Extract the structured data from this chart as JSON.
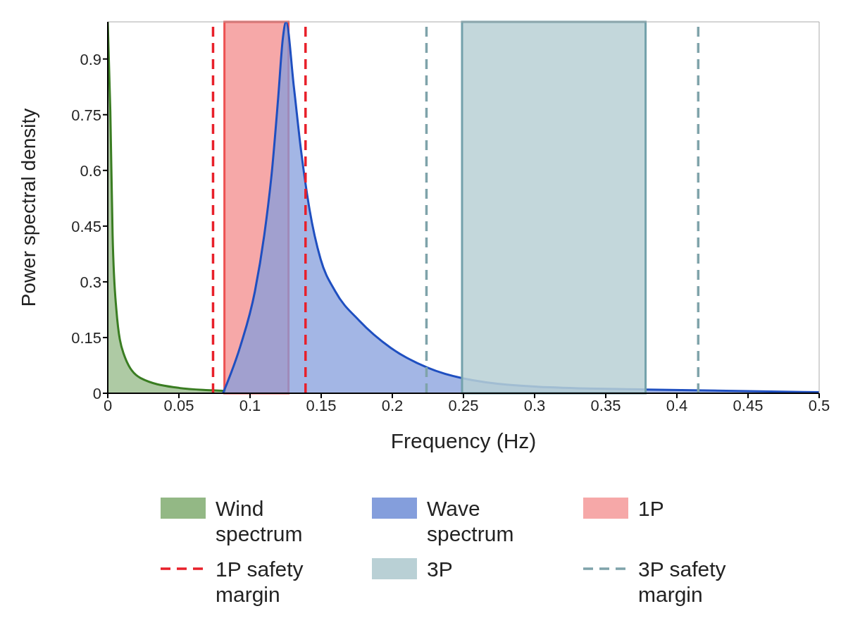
{
  "chart_data": {
    "type": "area",
    "xlabel": "Frequency (Hz)",
    "ylabel": "Power spectral density",
    "xlim": [
      0,
      0.5
    ],
    "xticks": [
      0,
      0.05,
      0.1,
      0.15,
      0.2,
      0.25,
      0.3,
      0.35,
      0.4,
      0.45,
      0.5
    ],
    "ylim": [
      0,
      1
    ],
    "yticks": [
      0,
      0.15,
      0.3,
      0.45,
      0.6,
      0.75,
      0.9
    ],
    "series": [
      {
        "name": "Wind spectrum",
        "color": "#3a7d22",
        "x": [
          0,
          0.0018,
          0.0034,
          0.006,
          0.011,
          0.023,
          0.0487,
          0.073,
          0.083
        ],
        "values": [
          1,
          0.76,
          0.426,
          0.227,
          0.108,
          0.041,
          0.015,
          0.008,
          0.006
        ]
      },
      {
        "name": "Wave spectrum",
        "color": "#1f4fc0",
        "x": [
          0.081,
          0.0932,
          0.1034,
          0.11,
          0.1154,
          0.1197,
          0.1231,
          0.1253,
          0.1308,
          0.1359,
          0.1419,
          0.1496,
          0.1598,
          0.1769,
          0.199,
          0.2247,
          0.25,
          0.3106,
          0.378,
          0.5
        ],
        "values": [
          0,
          0.127,
          0.274,
          0.426,
          0.599,
          0.792,
          0.957,
          1,
          0.825,
          0.652,
          0.493,
          0.361,
          0.275,
          0.195,
          0.122,
          0.069,
          0.04,
          0.016,
          0.01,
          0.003
        ]
      }
    ],
    "bands": [
      {
        "axis": "x",
        "from": 0.082,
        "to": 0.127,
        "label": "1P",
        "color": "#f6a8a8"
      },
      {
        "axis": "x",
        "from": 0.249,
        "to": 0.378,
        "label": "3P",
        "color": "#b9d0d5"
      }
    ],
    "ref_lines": [
      {
        "axis": "x",
        "value": 0.074,
        "label": "1P safety margin",
        "color": "#e8202a",
        "line_style": "dashed"
      },
      {
        "axis": "x",
        "value": 0.139,
        "color": "#e8202a",
        "line_style": "dashed"
      },
      {
        "axis": "x",
        "value": 0.224,
        "label": "3P safety margin",
        "color": "#7fa3aa",
        "line_style": "dashed"
      },
      {
        "axis": "x",
        "value": 0.415,
        "color": "#7fa3aa",
        "line_style": "dashed"
      }
    ],
    "grid": false,
    "legend": "bottom"
  }
}
